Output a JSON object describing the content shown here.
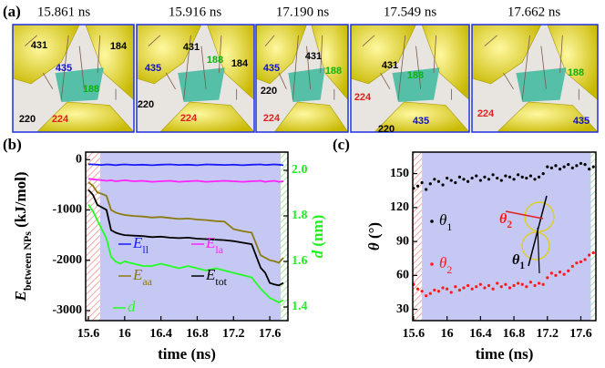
{
  "panel_labels": [
    "(a)",
    "(b)",
    "(c)"
  ],
  "snapshots": [
    {
      "time": "15.861 ns",
      "residues": [
        {
          "label": "431",
          "color": "#000000"
        },
        {
          "label": "435",
          "color": "#1010d0"
        },
        {
          "label": "184",
          "color": "#000000"
        },
        {
          "label": "188",
          "color": "#10b010"
        },
        {
          "label": "220",
          "color": "#000000"
        },
        {
          "label": "224",
          "color": "#e02020"
        }
      ]
    },
    {
      "time": "15.916 ns",
      "residues": [
        {
          "label": "431",
          "color": "#000000"
        },
        {
          "label": "435",
          "color": "#1010d0"
        },
        {
          "label": "188",
          "color": "#10b010"
        },
        {
          "label": "184",
          "color": "#000000"
        },
        {
          "label": "220",
          "color": "#000000"
        },
        {
          "label": "224",
          "color": "#e02020"
        }
      ]
    },
    {
      "time": "17.190 ns",
      "residues": [
        {
          "label": "435",
          "color": "#1010d0"
        },
        {
          "label": "431",
          "color": "#000000"
        },
        {
          "label": "188",
          "color": "#10b010"
        },
        {
          "label": "220",
          "color": "#000000"
        },
        {
          "label": "224",
          "color": "#e02020"
        }
      ]
    },
    {
      "time": "17.549 ns",
      "residues": [
        {
          "label": "431",
          "color": "#000000"
        },
        {
          "label": "188",
          "color": "#10b010"
        },
        {
          "label": "224",
          "color": "#e02020"
        },
        {
          "label": "220",
          "color": "#000000"
        },
        {
          "label": "435",
          "color": "#1010d0"
        }
      ]
    },
    {
      "time": "17.662 ns",
      "residues": [
        {
          "label": "188",
          "color": "#10b010"
        },
        {
          "label": "224",
          "color": "#e02020"
        },
        {
          "label": "435",
          "color": "#1010d0"
        }
      ]
    }
  ],
  "chart_data": [
    {
      "type": "line",
      "xlabel": "time (ns)",
      "ylabel": {
        "text": "E",
        "sub": "between NPs",
        "unit": " (kJ/mol)"
      },
      "y2label": {
        "text": "d",
        "unit": " (nm)",
        "color": "#22ee22"
      },
      "x": [
        15.6,
        15.65,
        15.7,
        15.75,
        15.8,
        15.85,
        15.9,
        15.95,
        16.0,
        16.1,
        16.2,
        16.3,
        16.4,
        16.5,
        16.6,
        16.7,
        16.8,
        16.9,
        17.0,
        17.1,
        17.2,
        17.3,
        17.4,
        17.5,
        17.55,
        17.6,
        17.65,
        17.7,
        17.75
      ],
      "xlim": [
        15.57,
        17.8
      ],
      "xticks": [
        15.6,
        16.0,
        16.4,
        16.8,
        17.2,
        17.6
      ],
      "ylim": [
        -3200,
        150
      ],
      "yticks": [
        0,
        -1000,
        -2000,
        -3000
      ],
      "y2lim": [
        1.34,
        2.08
      ],
      "y2ticks": [
        {
          "value": 2,
          "label": "2.0"
        },
        1.8,
        1.6,
        1.4
      ],
      "series": [
        {
          "name": "E",
          "sub": "ll",
          "color": "#1a1aff",
          "values": [
            -90,
            -95,
            -100,
            -105,
            -95,
            -100,
            -110,
            -100,
            -95,
            -105,
            -100,
            -110,
            -100,
            -95,
            -105,
            -100,
            -110,
            -95,
            -100,
            -105,
            -100,
            -110,
            -100,
            -95,
            -105,
            -100,
            -95,
            -100,
            -110
          ]
        },
        {
          "name": "E",
          "sub": "la",
          "color": "#ff22ff",
          "values": [
            -380,
            -390,
            -400,
            -410,
            -420,
            -410,
            -430,
            -420,
            -410,
            -430,
            -420,
            -440,
            -430,
            -420,
            -440,
            -430,
            -420,
            -440,
            -430,
            -420,
            -430,
            -440,
            -430,
            -420,
            -440,
            -430,
            -420,
            -440,
            -430
          ]
        },
        {
          "name": "E",
          "sub": "aa",
          "color": "#8a7a10",
          "values": [
            -450,
            -520,
            -650,
            -680,
            -720,
            -1000,
            -1050,
            -1080,
            -1100,
            -1120,
            -1130,
            -1150,
            -1140,
            -1160,
            -1180,
            -1170,
            -1190,
            -1200,
            -1220,
            -1230,
            -1380,
            -1420,
            -1450,
            -1900,
            -1950,
            -2000,
            -2020,
            -2050,
            -1950
          ]
        },
        {
          "name": "E",
          "sub": "tot",
          "color": "#000000",
          "values": [
            -600,
            -700,
            -900,
            -950,
            -1000,
            -1400,
            -1450,
            -1480,
            -1500,
            -1510,
            -1520,
            -1540,
            -1530,
            -1550,
            -1560,
            -1550,
            -1570,
            -1580,
            -1590,
            -1600,
            -1620,
            -1650,
            -1680,
            -2150,
            -2250,
            -2450,
            -2480,
            -2500,
            -2450
          ]
        },
        {
          "name": "d",
          "color": "#22ff22",
          "axis": "y2",
          "values": [
            1.85,
            1.82,
            1.78,
            1.74,
            1.7,
            1.62,
            1.6,
            1.59,
            1.6,
            1.59,
            1.58,
            1.58,
            1.59,
            1.58,
            1.57,
            1.58,
            1.57,
            1.56,
            1.57,
            1.56,
            1.55,
            1.54,
            1.53,
            1.48,
            1.46,
            1.44,
            1.43,
            1.42,
            1.43
          ]
        }
      ]
    },
    {
      "type": "scatter",
      "xlabel": "time (ns)",
      "ylabel": {
        "text": "θ",
        "unit": " (°)"
      },
      "x": [
        15.6,
        15.65,
        15.7,
        15.75,
        15.8,
        15.85,
        15.9,
        15.95,
        16.0,
        16.05,
        16.1,
        16.15,
        16.2,
        16.25,
        16.3,
        16.35,
        16.4,
        16.45,
        16.5,
        16.55,
        16.6,
        16.65,
        16.7,
        16.75,
        16.8,
        16.85,
        16.9,
        16.95,
        17.0,
        17.05,
        17.1,
        17.15,
        17.2,
        17.25,
        17.3,
        17.35,
        17.4,
        17.45,
        17.5,
        17.55,
        17.6,
        17.65,
        17.7,
        17.75
      ],
      "xlim": [
        15.59,
        17.78
      ],
      "xticks": [
        15.6,
        16.0,
        16.4,
        16.8,
        17.2,
        17.6
      ],
      "ylim": [
        20,
        169
      ],
      "yticks": [
        30,
        60,
        90,
        120,
        150
      ],
      "series": [
        {
          "name": "θ",
          "sub": "1",
          "color": "#000000",
          "values": [
            137,
            139,
            142,
            136,
            141,
            145,
            143,
            140,
            146,
            144,
            142,
            147,
            145,
            143,
            146,
            148,
            144,
            147,
            145,
            149,
            146,
            144,
            148,
            147,
            145,
            149,
            147,
            146,
            148,
            145,
            147,
            150,
            156,
            155,
            157,
            154,
            156,
            158,
            155,
            157,
            159,
            158,
            154,
            156
          ]
        },
        {
          "name": "θ",
          "sub": "2",
          "color": "#ff1a1a",
          "values": [
            52,
            48,
            46,
            42,
            44,
            47,
            46,
            49,
            48,
            45,
            50,
            47,
            49,
            51,
            48,
            50,
            52,
            49,
            51,
            48,
            53,
            50,
            52,
            49,
            51,
            53,
            52,
            50,
            54,
            51,
            53,
            52,
            58,
            62,
            60,
            63,
            61,
            64,
            68,
            71,
            72,
            74,
            78,
            80
          ]
        }
      ],
      "annotations": [
        {
          "text": "θ",
          "sub": "2",
          "color": "#ff1a1a"
        },
        {
          "text": "θ",
          "sub": "1",
          "color": "#000000"
        }
      ]
    }
  ]
}
